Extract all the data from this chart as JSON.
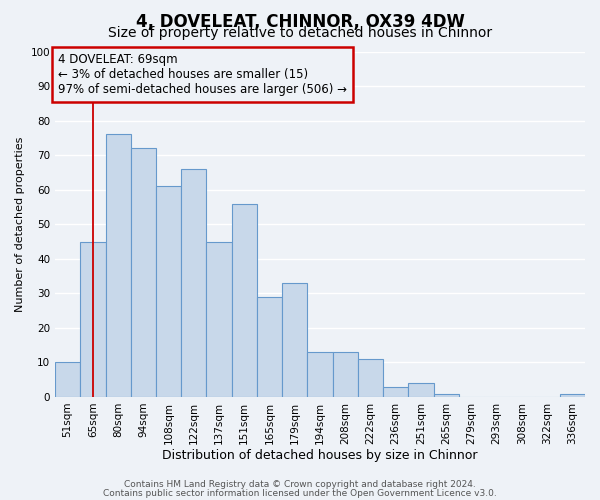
{
  "title": "4, DOVELEAT, CHINNOR, OX39 4DW",
  "subtitle": "Size of property relative to detached houses in Chinnor",
  "xlabel": "Distribution of detached houses by size in Chinnor",
  "ylabel": "Number of detached properties",
  "bar_labels": [
    "51sqm",
    "65sqm",
    "80sqm",
    "94sqm",
    "108sqm",
    "122sqm",
    "137sqm",
    "151sqm",
    "165sqm",
    "179sqm",
    "194sqm",
    "208sqm",
    "222sqm",
    "236sqm",
    "251sqm",
    "265sqm",
    "279sqm",
    "293sqm",
    "308sqm",
    "322sqm",
    "336sqm"
  ],
  "bar_heights": [
    10,
    45,
    76,
    72,
    61,
    66,
    45,
    56,
    29,
    33,
    13,
    13,
    11,
    3,
    4,
    1,
    0,
    0,
    0,
    0,
    1
  ],
  "bar_color": "#c8d8ea",
  "bar_edge_color": "#6699cc",
  "ylim": [
    0,
    100
  ],
  "yticks": [
    0,
    10,
    20,
    30,
    40,
    50,
    60,
    70,
    80,
    90,
    100
  ],
  "vline_x": 1,
  "vline_color": "#cc0000",
  "annotation_line1": "4 DOVELEAT: 69sqm",
  "annotation_line2": "← 3% of detached houses are smaller (15)",
  "annotation_line3": "97% of semi-detached houses are larger (506) →",
  "annotation_box_border_color": "#cc0000",
  "footer_line1": "Contains HM Land Registry data © Crown copyright and database right 2024.",
  "footer_line2": "Contains public sector information licensed under the Open Government Licence v3.0.",
  "bg_color": "#eef2f7",
  "grid_color": "#ffffff",
  "title_fontsize": 12,
  "subtitle_fontsize": 10,
  "xlabel_fontsize": 9,
  "ylabel_fontsize": 8,
  "tick_fontsize": 7.5,
  "annot_fontsize": 8.5,
  "footer_fontsize": 6.5
}
